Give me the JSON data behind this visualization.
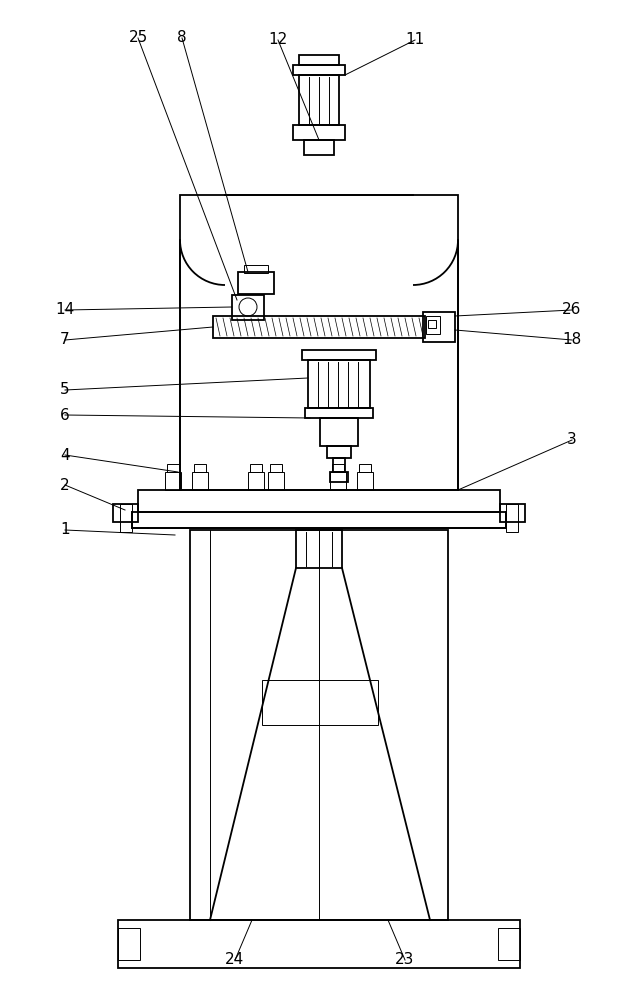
{
  "bg_color": "#ffffff",
  "lc": "#000000",
  "lw": 1.3,
  "tlw": 0.7,
  "fs": 11
}
